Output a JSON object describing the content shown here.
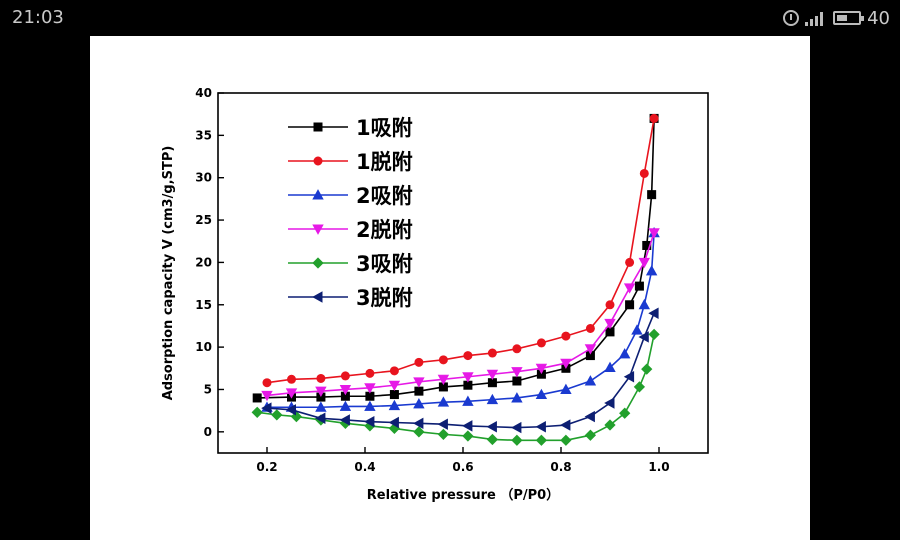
{
  "status_bar": {
    "time": "21:03",
    "battery": "40",
    "signal_label": "4G"
  },
  "chart_data": {
    "type": "line",
    "title": "",
    "xlabel": "Relative pressure （P/P0）",
    "ylabel": "Adsorption capacity V (cm3/g,STP)",
    "xlim": [
      0.1,
      1.1
    ],
    "ylim": [
      -2.5,
      40
    ],
    "xticks": [
      0.2,
      0.4,
      0.6,
      0.8,
      1.0
    ],
    "xtick_labels": [
      "0.2",
      "0.4",
      "0.6",
      "0.8",
      "1.0"
    ],
    "yticks": [
      0,
      5,
      10,
      15,
      20,
      25,
      30,
      35,
      40
    ],
    "ytick_labels": [
      "0",
      "5",
      "10",
      "15",
      "20",
      "25",
      "30",
      "35",
      "40"
    ],
    "legend_position": "top-left",
    "grid": false,
    "series": [
      {
        "name": "1吸附",
        "color": "#000000",
        "marker": "square",
        "x": [
          0.18,
          0.25,
          0.31,
          0.36,
          0.41,
          0.46,
          0.51,
          0.56,
          0.61,
          0.66,
          0.71,
          0.76,
          0.81,
          0.86,
          0.9,
          0.94,
          0.96,
          0.975,
          0.985,
          0.99
        ],
        "y": [
          4.0,
          4.1,
          4.1,
          4.2,
          4.2,
          4.4,
          4.8,
          5.3,
          5.5,
          5.8,
          6.0,
          6.8,
          7.5,
          9.0,
          11.8,
          15.0,
          17.2,
          22.0,
          28.0,
          37.0
        ]
      },
      {
        "name": "1脱附",
        "color": "#e8141e",
        "marker": "circle",
        "x": [
          0.2,
          0.25,
          0.31,
          0.36,
          0.41,
          0.46,
          0.51,
          0.56,
          0.61,
          0.66,
          0.71,
          0.76,
          0.81,
          0.86,
          0.9,
          0.94,
          0.97,
          0.99
        ],
        "y": [
          5.8,
          6.2,
          6.3,
          6.6,
          6.9,
          7.2,
          8.2,
          8.5,
          9.0,
          9.3,
          9.8,
          10.5,
          11.3,
          12.2,
          15.0,
          20.0,
          30.5,
          37.0
        ]
      },
      {
        "name": "2吸附",
        "color": "#1a3ad0",
        "marker": "triangle-up",
        "x": [
          0.2,
          0.25,
          0.31,
          0.36,
          0.41,
          0.46,
          0.51,
          0.56,
          0.61,
          0.66,
          0.71,
          0.76,
          0.81,
          0.86,
          0.9,
          0.93,
          0.955,
          0.97,
          0.985,
          0.99
        ],
        "y": [
          2.9,
          2.9,
          2.9,
          3.0,
          3.0,
          3.1,
          3.3,
          3.5,
          3.6,
          3.8,
          4.0,
          4.4,
          5.0,
          6.0,
          7.6,
          9.2,
          12.0,
          15.0,
          19.0,
          23.5
        ]
      },
      {
        "name": "2脱附",
        "color": "#e619e6",
        "marker": "triangle-down",
        "x": [
          0.2,
          0.25,
          0.31,
          0.36,
          0.41,
          0.46,
          0.51,
          0.56,
          0.61,
          0.66,
          0.71,
          0.76,
          0.81,
          0.86,
          0.9,
          0.94,
          0.97,
          0.99
        ],
        "y": [
          4.3,
          4.6,
          4.8,
          5.0,
          5.2,
          5.5,
          5.9,
          6.2,
          6.5,
          6.8,
          7.1,
          7.5,
          8.1,
          9.8,
          12.8,
          17.0,
          20.0,
          23.5
        ]
      },
      {
        "name": "3吸附",
        "color": "#22a02c",
        "marker": "diamond",
        "x": [
          0.18,
          0.22,
          0.26,
          0.31,
          0.36,
          0.41,
          0.46,
          0.51,
          0.56,
          0.61,
          0.66,
          0.71,
          0.76,
          0.81,
          0.86,
          0.9,
          0.93,
          0.96,
          0.975,
          0.99
        ],
        "y": [
          2.3,
          2.0,
          1.8,
          1.4,
          1.0,
          0.7,
          0.4,
          0.0,
          -0.3,
          -0.5,
          -0.9,
          -1.0,
          -1.0,
          -1.0,
          -0.4,
          0.8,
          2.2,
          5.3,
          7.4,
          11.5
        ]
      },
      {
        "name": "3脱附",
        "color": "#0d1f73",
        "marker": "triangle-left",
        "x": [
          0.2,
          0.25,
          0.31,
          0.36,
          0.41,
          0.46,
          0.51,
          0.56,
          0.61,
          0.66,
          0.71,
          0.76,
          0.81,
          0.86,
          0.9,
          0.94,
          0.97,
          0.99
        ],
        "y": [
          2.8,
          2.6,
          1.6,
          1.4,
          1.2,
          1.1,
          1.0,
          0.9,
          0.7,
          0.6,
          0.5,
          0.6,
          0.8,
          1.8,
          3.4,
          6.5,
          11.2,
          14.0
        ]
      }
    ]
  }
}
